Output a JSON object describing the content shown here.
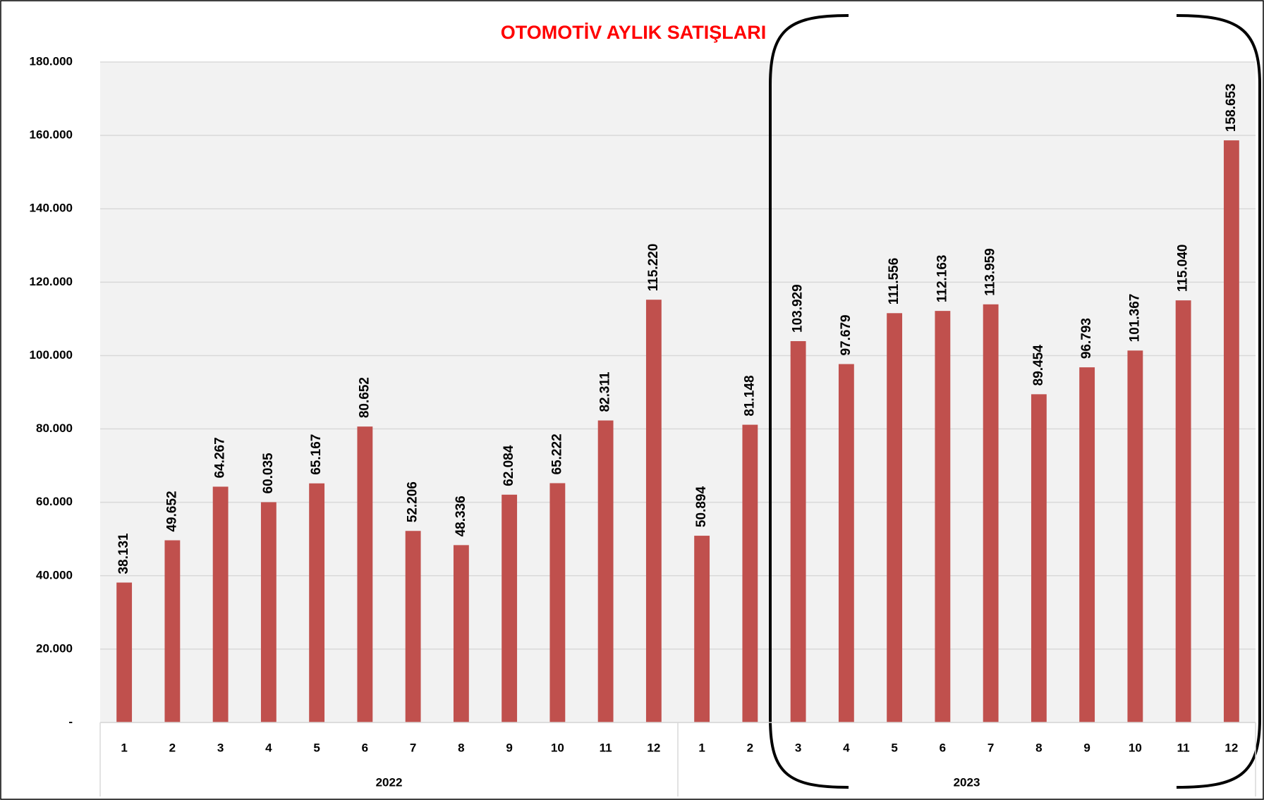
{
  "chart_data": {
    "type": "bar",
    "title": "OTOMOTİV AYLIK SATIŞLARI",
    "color": "#c0504d",
    "grid": true,
    "groups": [
      {
        "name": "2022",
        "categories": [
          "1",
          "2",
          "3",
          "4",
          "5",
          "6",
          "7",
          "8",
          "9",
          "10",
          "11",
          "12"
        ],
        "values": [
          38131,
          49652,
          64267,
          60035,
          65167,
          80652,
          52206,
          48336,
          62084,
          65222,
          82311,
          115220
        ],
        "value_labels": [
          "38.131",
          "49.652",
          "64.267",
          "60.035",
          "65.167",
          "80.652",
          "52.206",
          "48.336",
          "62.084",
          "65.222",
          "82.311",
          "115.220"
        ]
      },
      {
        "name": "2023",
        "categories": [
          "1",
          "2",
          "3",
          "4",
          "5",
          "6",
          "7",
          "8",
          "9",
          "10",
          "11",
          "12"
        ],
        "values": [
          50894,
          81148,
          103929,
          97679,
          111556,
          112163,
          113959,
          89454,
          96793,
          101367,
          115040,
          158653
        ],
        "value_labels": [
          "50.894",
          "81.148",
          "103.929",
          "97.679",
          "111.556",
          "112.163",
          "113.959",
          "89.454",
          "96.793",
          "101.367",
          "115.040",
          "158.653"
        ]
      }
    ],
    "ylim": [
      0,
      180000
    ],
    "yticks": [
      {
        "value": 0,
        "label": "-"
      },
      {
        "value": 20000,
        "label": "20.000"
      },
      {
        "value": 40000,
        "label": "40.000"
      },
      {
        "value": 60000,
        "label": "60.000"
      },
      {
        "value": 80000,
        "label": "80.000"
      },
      {
        "value": 100000,
        "label": "100.000"
      },
      {
        "value": 120000,
        "label": "120.000"
      },
      {
        "value": 140000,
        "label": "140.000"
      },
      {
        "value": 160000,
        "label": "160.000"
      },
      {
        "value": 180000,
        "label": "180.000"
      }
    ]
  }
}
